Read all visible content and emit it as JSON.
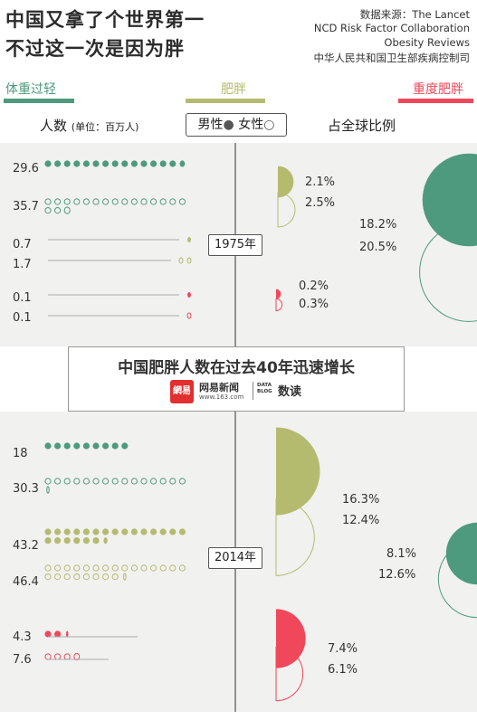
{
  "header": {
    "title_line1": "中国又拿了个世界第一",
    "title_line2": "不过这一次是因为胖",
    "sources": [
      "数据来源：The Lancet",
      "NCD Risk Factor Collaboration",
      "Obesity Reviews",
      "中华人民共和国卫生部疾病控制司"
    ]
  },
  "categories": {
    "overweight": {
      "label": "体重过轻",
      "color": "#4e9a7e"
    },
    "obese": {
      "label": "肥胖",
      "color": "#b5bb6e"
    },
    "severe": {
      "label": "重度肥胖",
      "color": "#f0485a"
    }
  },
  "column_headers": {
    "people": "人数",
    "unit": "(单位：百万人)",
    "male": "男性",
    "female": "女性",
    "share": "占全球比例"
  },
  "middle": {
    "headline": "中国肥胖人数在过去40年迅速增长",
    "brand": "网易新闻",
    "brand_url": "www.163.com",
    "brand_logo_text": "網易",
    "data_logo_text": "DATA BLOG",
    "data_label": "数读"
  },
  "chart_data": {
    "type": "dot-matrix-and-circles",
    "unit_people": "百万人",
    "years": [
      {
        "year": "1975年",
        "people": [
          {
            "category": "体重过轻",
            "sex": "男性",
            "value": 29.6
          },
          {
            "category": "体重过轻",
            "sex": "女性",
            "value": 35.7
          },
          {
            "category": "肥胖",
            "sex": "男性",
            "value": 0.7
          },
          {
            "category": "肥胖",
            "sex": "女性",
            "value": 1.7
          },
          {
            "category": "重度肥胖",
            "sex": "男性",
            "value": 0.1
          },
          {
            "category": "重度肥胖",
            "sex": "女性",
            "value": 0.1
          }
        ],
        "share": [
          {
            "category": "肥胖",
            "sex": "男性",
            "value": "2.1%"
          },
          {
            "category": "肥胖",
            "sex": "女性",
            "value": "2.5%"
          },
          {
            "category": "体重过轻",
            "sex": "男性",
            "value": "18.2%"
          },
          {
            "category": "体重过轻",
            "sex": "女性",
            "value": "20.5%"
          },
          {
            "category": "重度肥胖",
            "sex": "男性",
            "value": "0.2%"
          },
          {
            "category": "重度肥胖",
            "sex": "女性",
            "value": "0.3%"
          }
        ]
      },
      {
        "year": "2014年",
        "people": [
          {
            "category": "体重过轻",
            "sex": "男性",
            "value": 18
          },
          {
            "category": "体重过轻",
            "sex": "女性",
            "value": 30.3
          },
          {
            "category": "肥胖",
            "sex": "男性",
            "value": 43.2
          },
          {
            "category": "肥胖",
            "sex": "女性",
            "value": 46.4
          },
          {
            "category": "重度肥胖",
            "sex": "男性",
            "value": 4.3
          },
          {
            "category": "重度肥胖",
            "sex": "女性",
            "value": 7.6
          }
        ],
        "share": [
          {
            "category": "肥胖",
            "sex": "男性",
            "value": "16.3%"
          },
          {
            "category": "肥胖",
            "sex": "女性",
            "value": "12.4%"
          },
          {
            "category": "体重过轻",
            "sex": "男性",
            "value": "8.1%"
          },
          {
            "category": "体重过轻",
            "sex": "女性",
            "value": "12.6%"
          },
          {
            "category": "重度肥胖",
            "sex": "男性",
            "value": "7.4%"
          },
          {
            "category": "重度肥胖",
            "sex": "女性",
            "value": "6.1%"
          }
        ]
      }
    ]
  }
}
